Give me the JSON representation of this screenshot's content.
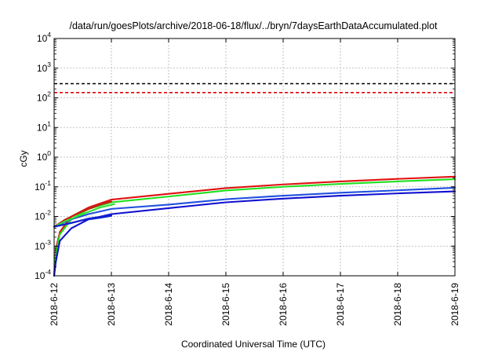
{
  "chart_data": {
    "type": "line",
    "title": "/data/run/goesPlots/archive/2018-06-18/flux/../bryn/7daysEarthDataAccumulated.plot",
    "xlabel": "Coordinated Universal Time (UTC)",
    "ylabel": "cGy",
    "y_scale": "log",
    "ylim": [
      0.0001,
      10000
    ],
    "xlim": [
      "2018-6-12",
      "2018-6-19"
    ],
    "x_ticks": [
      "2018-6-12",
      "2018-6-13",
      "2018-6-14",
      "2018-6-15",
      "2018-6-16",
      "2018-6-17",
      "2018-6-18",
      "2018-6-19"
    ],
    "y_ticks": [
      {
        "base": "10",
        "exp": "-4",
        "value": 0.0001
      },
      {
        "base": "10",
        "exp": "-3",
        "value": 0.001
      },
      {
        "base": "10",
        "exp": "-2",
        "value": 0.01
      },
      {
        "base": "10",
        "exp": "-1",
        "value": 0.1
      },
      {
        "base": "10",
        "exp": "0",
        "value": 1
      },
      {
        "base": "10",
        "exp": "1",
        "value": 10
      },
      {
        "base": "10",
        "exp": "2",
        "value": 100
      },
      {
        "base": "10",
        "exp": "3",
        "value": 1000
      },
      {
        "base": "10",
        "exp": "4",
        "value": 10000
      }
    ],
    "grid": true,
    "legend": "none",
    "reference_lines": [
      {
        "y": 300,
        "color": "#000000",
        "style": "dashed"
      },
      {
        "y": 150,
        "color": "#e00000",
        "style": "dashed"
      }
    ],
    "series": [
      {
        "color": "#e01010",
        "points": [
          [
            0.0,
            4e-05
          ],
          [
            0.03,
            0.0008
          ],
          [
            0.1,
            0.003
          ],
          [
            0.3,
            0.01
          ],
          [
            0.6,
            0.02
          ],
          [
            1.0,
            0.037
          ],
          [
            2.0,
            0.058
          ],
          [
            3.0,
            0.09
          ],
          [
            4.0,
            0.12
          ],
          [
            5.0,
            0.152
          ],
          [
            6.0,
            0.185
          ],
          [
            7.0,
            0.22
          ]
        ]
      },
      {
        "color": "#20e020",
        "points": [
          [
            0.0,
            4e-05
          ],
          [
            0.03,
            0.0006
          ],
          [
            0.1,
            0.0025
          ],
          [
            0.3,
            0.008
          ],
          [
            0.6,
            0.018
          ],
          [
            1.0,
            0.03
          ],
          [
            2.0,
            0.047
          ],
          [
            3.0,
            0.075
          ],
          [
            4.0,
            0.1
          ],
          [
            5.0,
            0.125
          ],
          [
            6.0,
            0.152
          ],
          [
            7.0,
            0.18
          ]
        ]
      },
      {
        "color": "#2050e0",
        "points": [
          [
            0.0,
            0.0045
          ],
          [
            0.3,
            0.008
          ],
          [
            0.6,
            0.012
          ],
          [
            1.0,
            0.018
          ],
          [
            2.0,
            0.025
          ],
          [
            3.0,
            0.038
          ],
          [
            4.0,
            0.05
          ],
          [
            5.0,
            0.063
          ],
          [
            6.0,
            0.076
          ],
          [
            7.0,
            0.093
          ]
        ]
      },
      {
        "color": "#1010d0",
        "points": [
          [
            0.0,
            6e-05
          ],
          [
            0.03,
            0.0003
          ],
          [
            0.1,
            0.0015
          ],
          [
            0.3,
            0.004
          ],
          [
            0.6,
            0.008
          ],
          [
            1.0,
            0.012
          ],
          [
            2.0,
            0.019
          ],
          [
            3.0,
            0.03
          ],
          [
            4.0,
            0.04
          ],
          [
            5.0,
            0.05
          ],
          [
            6.0,
            0.06
          ],
          [
            7.0,
            0.07
          ]
        ]
      },
      {
        "color": "#c02010",
        "points": [
          [
            0.0,
            0.0045
          ],
          [
            0.2,
            0.008
          ],
          [
            0.5,
            0.015
          ],
          [
            0.8,
            0.025
          ],
          [
            1.0,
            0.032
          ]
        ]
      },
      {
        "color": "#30e030",
        "points": [
          [
            0.0,
            0.0045
          ],
          [
            0.2,
            0.007
          ],
          [
            0.5,
            0.012
          ],
          [
            0.8,
            0.02
          ],
          [
            1.05,
            0.026
          ]
        ]
      },
      {
        "color": "#1020d0",
        "points": [
          [
            0.0,
            0.0045
          ],
          [
            0.3,
            0.006
          ],
          [
            0.6,
            0.0085
          ],
          [
            1.0,
            0.011
          ]
        ]
      },
      {
        "color": "#1020d0",
        "points": [
          [
            0.0,
            0.0045
          ],
          [
            0.2,
            0.0055
          ],
          [
            0.5,
            0.0075
          ],
          [
            0.8,
            0.009
          ],
          [
            1.0,
            0.0105
          ]
        ]
      }
    ]
  }
}
